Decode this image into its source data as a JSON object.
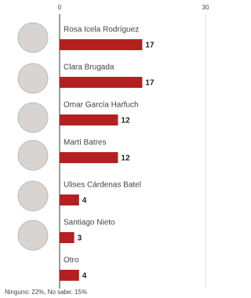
{
  "chart_data": {
    "type": "bar",
    "orientation": "horizontal",
    "categories": [
      "Rosa Icela Rodríguez",
      "Clara Brugada",
      "Omar García Harfuch",
      "Martí Batres",
      "Ulises Cárdenas Batel",
      "Santiago Nieto",
      "Otro"
    ],
    "values": [
      17,
      17,
      12,
      12,
      4,
      3,
      4
    ],
    "color": "#b3201f",
    "xlim": [
      0,
      30
    ],
    "xticks": [
      0,
      30
    ],
    "grid": true,
    "note": "Ninguno: 22%, No sabe: 15%"
  }
}
